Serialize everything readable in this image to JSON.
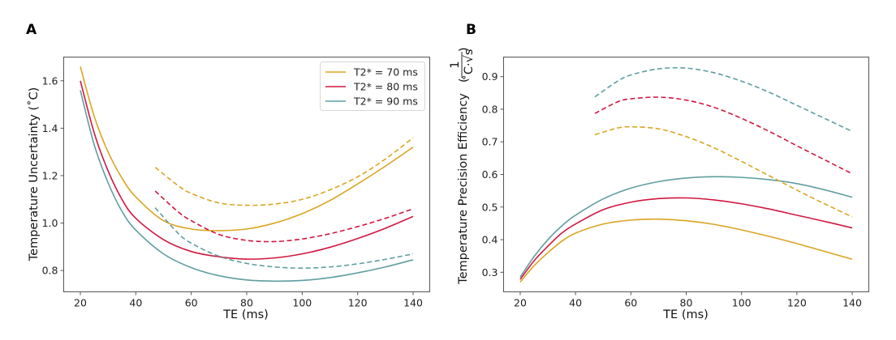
{
  "chart_data": [
    {
      "type": "line",
      "panel_label": "A",
      "title": "",
      "xlabel": "TE (ms)",
      "ylabel": "Temperature Uncertainty ($^\\circ$C)",
      "ylabel_text": "Temperature Uncertainty (˚C)",
      "xlim": [
        14,
        146
      ],
      "ylim": [
        0.71,
        1.7
      ],
      "xticks": [
        20,
        40,
        60,
        80,
        100,
        120,
        140
      ],
      "xtick_labels": [
        "20",
        "40",
        "60",
        "80",
        "100",
        "120",
        "140"
      ],
      "yticks": [
        0.8,
        1.0,
        1.2,
        1.4,
        1.6
      ],
      "ytick_labels": [
        "0.8",
        "1.0",
        "1.2",
        "1.4",
        "1.6"
      ],
      "grid": false,
      "legend_position": "top-right",
      "legend": [
        "T2* = 70 ms",
        "T2* = 80 ms",
        "T2* = 90 ms"
      ],
      "series": [
        {
          "name": "T2* = 70 ms",
          "style": "solid",
          "color": "#DAA520",
          "x": [
            20,
            25,
            30,
            35,
            40,
            50,
            60,
            70,
            80,
            90,
            100,
            110,
            120,
            130,
            140
          ],
          "y": [
            1.66,
            1.45,
            1.3,
            1.19,
            1.11,
            1.01,
            0.975,
            0.968,
            0.975,
            1.0,
            1.04,
            1.095,
            1.165,
            1.24,
            1.32
          ]
        },
        {
          "name": "T2* = 80 ms",
          "style": "solid",
          "color": "#D0173F",
          "x": [
            20,
            25,
            30,
            35,
            40,
            50,
            60,
            70,
            80,
            90,
            100,
            110,
            120,
            130,
            140
          ],
          "y": [
            1.6,
            1.38,
            1.22,
            1.1,
            1.02,
            0.93,
            0.88,
            0.858,
            0.848,
            0.853,
            0.87,
            0.898,
            0.935,
            0.978,
            1.028
          ]
        },
        {
          "name": "T2* = 90 ms",
          "style": "solid",
          "color": "#5F9EA0",
          "x": [
            20,
            25,
            30,
            35,
            40,
            50,
            60,
            70,
            80,
            90,
            100,
            110,
            120,
            130,
            140
          ],
          "y": [
            1.56,
            1.33,
            1.17,
            1.05,
            0.97,
            0.87,
            0.812,
            0.778,
            0.76,
            0.755,
            0.758,
            0.77,
            0.79,
            0.815,
            0.845
          ]
        },
        {
          "name": "T2* = 70 ms (dashed)",
          "style": "dashed",
          "color": "#DAA520",
          "x": [
            47,
            55,
            60,
            70,
            80,
            90,
            100,
            110,
            120,
            130,
            140
          ],
          "y": [
            1.235,
            1.16,
            1.125,
            1.085,
            1.075,
            1.08,
            1.1,
            1.14,
            1.195,
            1.27,
            1.36
          ]
        },
        {
          "name": "T2* = 80 ms (dashed)",
          "style": "dashed",
          "color": "#D0173F",
          "x": [
            47,
            55,
            60,
            70,
            80,
            90,
            100,
            110,
            120,
            130,
            140
          ],
          "y": [
            1.135,
            1.05,
            1.01,
            0.952,
            0.927,
            0.922,
            0.933,
            0.955,
            0.985,
            1.02,
            1.06
          ]
        },
        {
          "name": "T2* = 90 ms (dashed)",
          "style": "dashed",
          "color": "#5F9EA0",
          "x": [
            47,
            55,
            60,
            70,
            80,
            90,
            100,
            110,
            120,
            130,
            140
          ],
          "y": [
            1.065,
            0.96,
            0.915,
            0.86,
            0.83,
            0.815,
            0.81,
            0.815,
            0.828,
            0.847,
            0.87
          ]
        }
      ]
    },
    {
      "type": "line",
      "panel_label": "B",
      "title": "",
      "xlabel": "TE (ms)",
      "ylabel": "Temperature Precision Efficiency (1 / (˚C·√s))",
      "ylabel_text": "Temperature Precision Efficiency",
      "ylabel_unit_numerator": "1",
      "ylabel_unit_denominator": "˚C·√s",
      "xlim": [
        14,
        146
      ],
      "ylim": [
        0.24,
        0.96
      ],
      "xticks": [
        20,
        40,
        60,
        80,
        100,
        120,
        140
      ],
      "xtick_labels": [
        "20",
        "40",
        "60",
        "80",
        "100",
        "120",
        "140"
      ],
      "yticks": [
        0.3,
        0.4,
        0.5,
        0.6,
        0.7,
        0.8,
        0.9
      ],
      "ytick_labels": [
        "0.3",
        "0.4",
        "0.5",
        "0.6",
        "0.7",
        "0.8",
        "0.9"
      ],
      "grid": false,
      "legend_position": "none",
      "series": [
        {
          "name": "T2* = 70 ms",
          "style": "solid",
          "color": "#DAA520",
          "x": [
            20,
            25,
            30,
            35,
            40,
            50,
            60,
            70,
            80,
            90,
            100,
            110,
            120,
            130,
            140
          ],
          "y": [
            0.27,
            0.32,
            0.36,
            0.395,
            0.42,
            0.448,
            0.46,
            0.463,
            0.458,
            0.447,
            0.43,
            0.41,
            0.388,
            0.364,
            0.34
          ]
        },
        {
          "name": "T2* = 80 ms",
          "style": "solid",
          "color": "#D0173F",
          "x": [
            20,
            25,
            30,
            35,
            40,
            50,
            60,
            70,
            80,
            90,
            100,
            110,
            120,
            130,
            140
          ],
          "y": [
            0.278,
            0.335,
            0.38,
            0.42,
            0.448,
            0.492,
            0.515,
            0.526,
            0.528,
            0.522,
            0.51,
            0.494,
            0.475,
            0.456,
            0.436
          ]
        },
        {
          "name": "T2* = 90 ms",
          "style": "solid",
          "color": "#5F9EA0",
          "x": [
            20,
            25,
            30,
            35,
            40,
            50,
            60,
            70,
            80,
            90,
            100,
            110,
            120,
            130,
            140
          ],
          "y": [
            0.285,
            0.348,
            0.4,
            0.442,
            0.475,
            0.525,
            0.558,
            0.578,
            0.589,
            0.593,
            0.591,
            0.584,
            0.572,
            0.553,
            0.53
          ]
        },
        {
          "name": "T2* = 70 ms (dashed)",
          "style": "dashed",
          "color": "#DAA520",
          "x": [
            47,
            55,
            60,
            70,
            80,
            90,
            100,
            110,
            120,
            130,
            140
          ],
          "y": [
            0.722,
            0.742,
            0.746,
            0.74,
            0.716,
            0.682,
            0.64,
            0.596,
            0.552,
            0.51,
            0.47
          ]
        },
        {
          "name": "T2* = 80 ms (dashed)",
          "style": "dashed",
          "color": "#D0173F",
          "x": [
            47,
            55,
            60,
            70,
            80,
            90,
            100,
            110,
            120,
            130,
            140
          ],
          "y": [
            0.787,
            0.822,
            0.832,
            0.837,
            0.828,
            0.806,
            0.772,
            0.732,
            0.688,
            0.645,
            0.602
          ]
        },
        {
          "name": "T2* = 90 ms (dashed)",
          "style": "dashed",
          "color": "#5F9EA0",
          "x": [
            47,
            55,
            60,
            70,
            80,
            90,
            100,
            110,
            120,
            130,
            140
          ],
          "y": [
            0.838,
            0.885,
            0.905,
            0.924,
            0.926,
            0.912,
            0.886,
            0.852,
            0.812,
            0.772,
            0.732
          ]
        }
      ]
    }
  ]
}
